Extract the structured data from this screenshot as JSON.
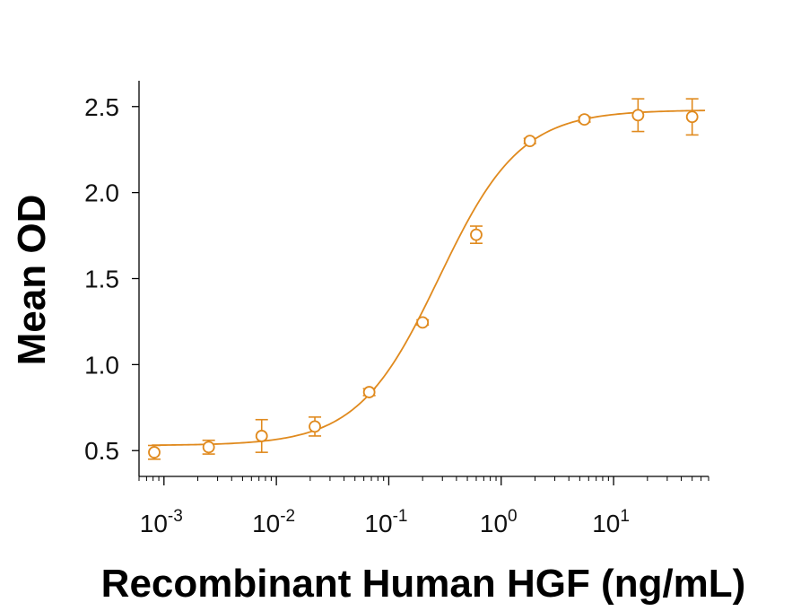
{
  "chart_data": {
    "type": "scatter",
    "title": "",
    "xlabel": "Recombinant Human HGF (ng/mL)",
    "ylabel": "Mean OD",
    "x_scale": "log",
    "xlim": [
      0.0006,
      70
    ],
    "ylim": [
      0.35,
      2.65
    ],
    "yticks": [
      0.5,
      1.0,
      1.5,
      2.0,
      2.5
    ],
    "ytick_labels": [
      "0.5",
      "1.0",
      "1.5",
      "2.0",
      "2.5"
    ],
    "xticks": [
      0.001,
      0.01,
      0.1,
      1,
      10
    ],
    "xtick_labels": [
      {
        "base": "10",
        "exp": "-3"
      },
      {
        "base": "10",
        "exp": "-2"
      },
      {
        "base": "10",
        "exp": "-1"
      },
      {
        "base": "10",
        "exp": "0"
      },
      {
        "base": "10",
        "exp": "1"
      }
    ],
    "grid": false,
    "color": "#E08A1E",
    "series": [
      {
        "x": [
          0.00082,
          0.0025,
          0.0074,
          0.022,
          0.067,
          0.2,
          0.6,
          1.8,
          5.5,
          16.5,
          50
        ],
        "y": [
          0.49,
          0.52,
          0.585,
          0.64,
          0.84,
          1.245,
          1.755,
          2.3,
          2.425,
          2.45,
          2.44
        ],
        "error": [
          0.04,
          0.04,
          0.095,
          0.055,
          0.02,
          0.015,
          0.05,
          0.015,
          0.015,
          0.095,
          0.105
        ]
      }
    ],
    "fit_curve": {
      "model": "4PL",
      "bottom": 0.53,
      "top": 2.48,
      "ec50": 0.28,
      "hill": 1.2
    }
  }
}
